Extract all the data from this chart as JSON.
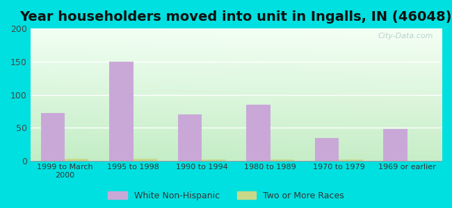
{
  "title": "Year householders moved into unit in Ingalls, IN (46048)",
  "categories": [
    "1999 to March\n2000",
    "1995 to 1998",
    "1990 to 1994",
    "1980 to 1989",
    "1970 to 1979",
    "1969 or earlier"
  ],
  "white_non_hispanic": [
    72,
    150,
    70,
    85,
    35,
    48
  ],
  "two_or_more_races": [
    3,
    3,
    2,
    2,
    2,
    0
  ],
  "bar_color_white": "#c9a8d8",
  "bar_color_two": "#c8d888",
  "background_outer": "#00e0e0",
  "ylim": [
    0,
    200
  ],
  "yticks": [
    0,
    50,
    100,
    150,
    200
  ],
  "title_fontsize": 14,
  "legend_label_white": "White Non-Hispanic",
  "legend_label_two": "Two or More Races",
  "bar_width": 0.35,
  "gradient_top_color": "#f5fff5",
  "gradient_bottom_color": "#c8eec8"
}
